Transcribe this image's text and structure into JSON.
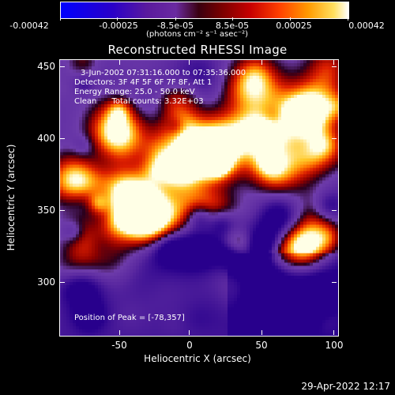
{
  "colorbar": {
    "ticks": [
      "-0.00042",
      "-0.00025",
      "-8.5e-05",
      "8.5e-05",
      "0.00025",
      "0.00042"
    ],
    "units": "(photons cm⁻² s⁻¹ asec⁻²)"
  },
  "title": "Reconstructed RHESSI Image",
  "overlay": {
    "time": "3-Jun-2002 07:31:16.000 to 07:35:36.000",
    "detectors": "Detectors: 3F 4F 5F 6F 7F 8F, Att 1",
    "energy": "Energy Range: 25.0 - 50.0 keV",
    "clean": "Clean      Total counts: 3.32E+03",
    "peak": "Position of Peak = [-78,357]"
  },
  "axes": {
    "ylabel": "Heliocentric Y (arcsec)",
    "xlabel": "Heliocentric X (arcsec)",
    "yticks": [
      "450",
      "400",
      "350",
      "300"
    ],
    "xticks": [
      "-50",
      "0",
      "50",
      "100"
    ]
  },
  "footer": {
    "date": "29-Apr-2022 12:17"
  }
}
